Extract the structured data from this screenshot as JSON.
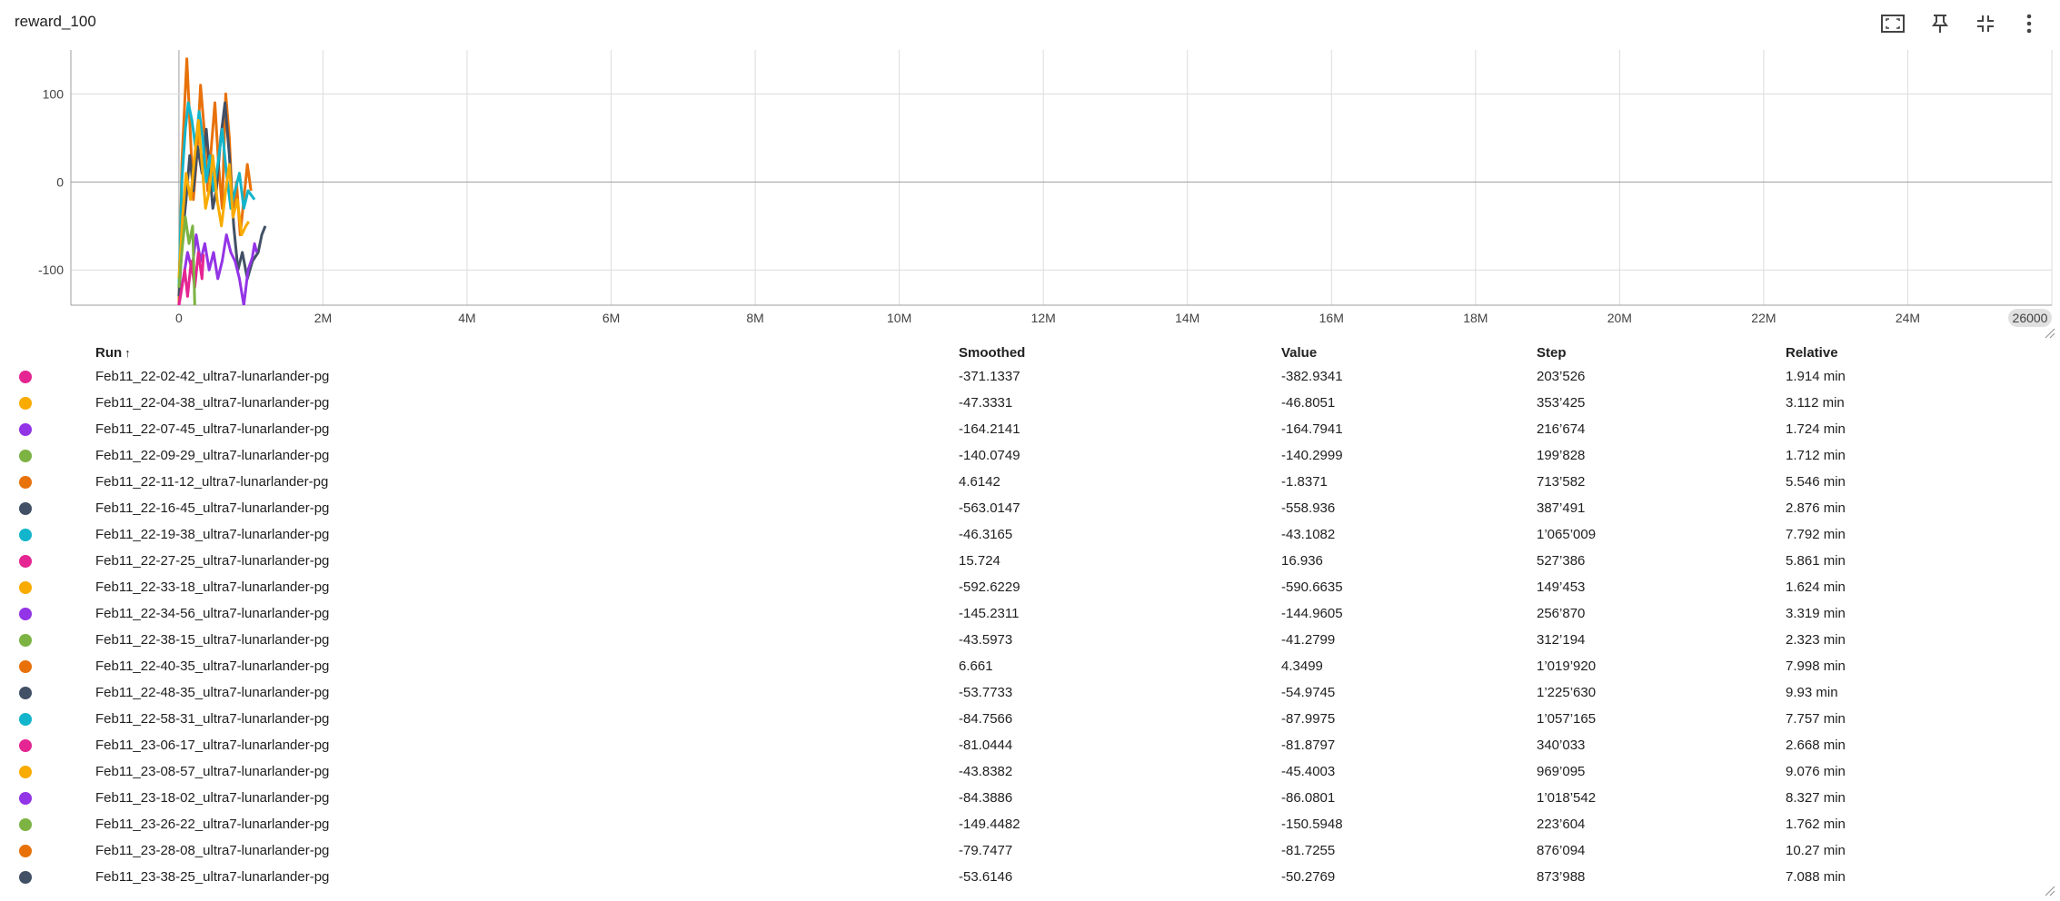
{
  "card": {
    "title": "reward_100",
    "toolbar": [
      {
        "icon": "fit-domain-icon"
      },
      {
        "icon": "pin-icon"
      },
      {
        "icon": "collapse-icon"
      },
      {
        "icon": "more-vert-icon"
      }
    ]
  },
  "chart_data": {
    "type": "line",
    "xlim": [
      -1500000,
      26000000
    ],
    "ylim": [
      -140,
      150
    ],
    "x_ticks": [
      {
        "value": 0,
        "label": "0"
      },
      {
        "value": 2000000,
        "label": "2M"
      },
      {
        "value": 4000000,
        "label": "4M"
      },
      {
        "value": 6000000,
        "label": "6M"
      },
      {
        "value": 8000000,
        "label": "8M"
      },
      {
        "value": 10000000,
        "label": "10M"
      },
      {
        "value": 12000000,
        "label": "12M"
      },
      {
        "value": 14000000,
        "label": "14M"
      },
      {
        "value": 16000000,
        "label": "16M"
      },
      {
        "value": 18000000,
        "label": "18M"
      },
      {
        "value": 20000000,
        "label": "20M"
      },
      {
        "value": 22000000,
        "label": "22M"
      },
      {
        "value": 24000000,
        "label": "24M"
      }
    ],
    "x_edge_label": "26000",
    "y_ticks": [
      {
        "value": 100,
        "label": "100"
      },
      {
        "value": 0,
        "label": "0"
      },
      {
        "value": -100,
        "label": "-100"
      }
    ],
    "grid": true,
    "series": [
      {
        "color": "#e8710a",
        "points": [
          [
            0,
            -140
          ],
          [
            40000,
            20
          ],
          [
            80000,
            90
          ],
          [
            110000,
            140
          ],
          [
            150000,
            70
          ],
          [
            200000,
            -20
          ],
          [
            250000,
            30
          ],
          [
            300000,
            110
          ],
          [
            350000,
            60
          ],
          [
            400000,
            -10
          ],
          [
            450000,
            40
          ],
          [
            500000,
            90
          ],
          [
            550000,
            20
          ],
          [
            600000,
            -30
          ],
          [
            650000,
            100
          ],
          [
            700000,
            50
          ],
          [
            750000,
            -40
          ],
          [
            800000,
            0
          ],
          [
            850000,
            -60
          ],
          [
            900000,
            -20
          ],
          [
            950000,
            20
          ],
          [
            1000000,
            -10
          ]
        ]
      },
      {
        "color": "#425066",
        "points": [
          [
            0,
            -130
          ],
          [
            50000,
            -60
          ],
          [
            100000,
            -20
          ],
          [
            150000,
            30
          ],
          [
            200000,
            -10
          ],
          [
            260000,
            40
          ],
          [
            320000,
            10
          ],
          [
            380000,
            60
          ],
          [
            420000,
            20
          ],
          [
            470000,
            -30
          ],
          [
            520000,
            -10
          ],
          [
            580000,
            50
          ],
          [
            640000,
            90
          ],
          [
            700000,
            30
          ],
          [
            760000,
            -50
          ],
          [
            820000,
            -100
          ],
          [
            880000,
            -80
          ],
          [
            950000,
            -110
          ],
          [
            1020000,
            -90
          ],
          [
            1100000,
            -80
          ],
          [
            1150000,
            -60
          ],
          [
            1200000,
            -50
          ]
        ]
      },
      {
        "color": "#12b5cb",
        "points": [
          [
            0,
            -120
          ],
          [
            40000,
            0
          ],
          [
            90000,
            60
          ],
          [
            130000,
            90
          ],
          [
            180000,
            70
          ],
          [
            230000,
            40
          ],
          [
            280000,
            80
          ],
          [
            330000,
            50
          ],
          [
            380000,
            0
          ],
          [
            430000,
            30
          ],
          [
            480000,
            -10
          ],
          [
            540000,
            20
          ],
          [
            600000,
            60
          ],
          [
            660000,
            10
          ],
          [
            720000,
            -30
          ],
          [
            780000,
            -10
          ],
          [
            840000,
            10
          ],
          [
            900000,
            -30
          ],
          [
            960000,
            -10
          ],
          [
            1050000,
            -20
          ]
        ]
      },
      {
        "color": "#f9ab00",
        "points": [
          [
            0,
            -110
          ],
          [
            50000,
            -40
          ],
          [
            100000,
            10
          ],
          [
            160000,
            -20
          ],
          [
            220000,
            30
          ],
          [
            270000,
            70
          ],
          [
            320000,
            20
          ],
          [
            370000,
            -30
          ],
          [
            420000,
            -10
          ],
          [
            470000,
            30
          ],
          [
            530000,
            -20
          ],
          [
            590000,
            -50
          ],
          [
            650000,
            -10
          ],
          [
            700000,
            20
          ],
          [
            750000,
            -40
          ],
          [
            810000,
            -20
          ],
          [
            870000,
            -60
          ],
          [
            930000,
            -50
          ],
          [
            969000,
            -45
          ]
        ]
      },
      {
        "color": "#9334e6",
        "points": [
          [
            0,
            -140
          ],
          [
            60000,
            -110
          ],
          [
            120000,
            -80
          ],
          [
            180000,
            -100
          ],
          [
            240000,
            -60
          ],
          [
            300000,
            -90
          ],
          [
            360000,
            -70
          ],
          [
            420000,
            -100
          ],
          [
            480000,
            -80
          ],
          [
            540000,
            -110
          ],
          [
            600000,
            -90
          ],
          [
            660000,
            -60
          ],
          [
            720000,
            -80
          ],
          [
            780000,
            -90
          ],
          [
            840000,
            -110
          ],
          [
            900000,
            -140
          ],
          [
            960000,
            -100
          ],
          [
            1018000,
            -86
          ],
          [
            1050000,
            -70
          ],
          [
            1080000,
            -80
          ]
        ]
      },
      {
        "color": "#e52592",
        "points": [
          [
            0,
            -140
          ],
          [
            40000,
            -120
          ],
          [
            80000,
            -100
          ],
          [
            120000,
            -130
          ],
          [
            170000,
            -90
          ],
          [
            220000,
            -120
          ],
          [
            270000,
            -80
          ],
          [
            320000,
            -110
          ],
          [
            340000,
            -82
          ]
        ]
      },
      {
        "color": "#7cb342",
        "points": [
          [
            0,
            -120
          ],
          [
            40000,
            -80
          ],
          [
            90000,
            -40
          ],
          [
            140000,
            -70
          ],
          [
            190000,
            -50
          ],
          [
            223000,
            -150
          ]
        ]
      }
    ]
  },
  "table": {
    "headers": {
      "run": "Run",
      "sort_indicator": "↑",
      "smoothed": "Smoothed",
      "value": "Value",
      "step": "Step",
      "relative": "Relative"
    },
    "rows": [
      {
        "color": "#e52592",
        "run": "Feb11_22-02-42_ultra7-lunarlander-pg",
        "smoothed": "-371.1337",
        "value": "-382.9341",
        "step": "203’526",
        "relative": "1.914 min"
      },
      {
        "color": "#f9ab00",
        "run": "Feb11_22-04-38_ultra7-lunarlander-pg",
        "smoothed": "-47.3331",
        "value": "-46.8051",
        "step": "353’425",
        "relative": "3.112 min"
      },
      {
        "color": "#9334e6",
        "run": "Feb11_22-07-45_ultra7-lunarlander-pg",
        "smoothed": "-164.2141",
        "value": "-164.7941",
        "step": "216’674",
        "relative": "1.724 min"
      },
      {
        "color": "#7cb342",
        "run": "Feb11_22-09-29_ultra7-lunarlander-pg",
        "smoothed": "-140.0749",
        "value": "-140.2999",
        "step": "199’828",
        "relative": "1.712 min"
      },
      {
        "color": "#e8710a",
        "run": "Feb11_22-11-12_ultra7-lunarlander-pg",
        "smoothed": "4.6142",
        "value": "-1.8371",
        "step": "713’582",
        "relative": "5.546 min"
      },
      {
        "color": "#425066",
        "run": "Feb11_22-16-45_ultra7-lunarlander-pg",
        "smoothed": "-563.0147",
        "value": "-558.936",
        "step": "387’491",
        "relative": "2.876 min"
      },
      {
        "color": "#12b5cb",
        "run": "Feb11_22-19-38_ultra7-lunarlander-pg",
        "smoothed": "-46.3165",
        "value": "-43.1082",
        "step": "1’065’009",
        "relative": "7.792 min"
      },
      {
        "color": "#e52592",
        "run": "Feb11_22-27-25_ultra7-lunarlander-pg",
        "smoothed": "15.724",
        "value": "16.936",
        "step": "527’386",
        "relative": "5.861 min"
      },
      {
        "color": "#f9ab00",
        "run": "Feb11_22-33-18_ultra7-lunarlander-pg",
        "smoothed": "-592.6229",
        "value": "-590.6635",
        "step": "149’453",
        "relative": "1.624 min"
      },
      {
        "color": "#9334e6",
        "run": "Feb11_22-34-56_ultra7-lunarlander-pg",
        "smoothed": "-145.2311",
        "value": "-144.9605",
        "step": "256’870",
        "relative": "3.319 min"
      },
      {
        "color": "#7cb342",
        "run": "Feb11_22-38-15_ultra7-lunarlander-pg",
        "smoothed": "-43.5973",
        "value": "-41.2799",
        "step": "312’194",
        "relative": "2.323 min"
      },
      {
        "color": "#e8710a",
        "run": "Feb11_22-40-35_ultra7-lunarlander-pg",
        "smoothed": "6.661",
        "value": "4.3499",
        "step": "1’019’920",
        "relative": "7.998 min"
      },
      {
        "color": "#425066",
        "run": "Feb11_22-48-35_ultra7-lunarlander-pg",
        "smoothed": "-53.7733",
        "value": "-54.9745",
        "step": "1’225’630",
        "relative": "9.93 min"
      },
      {
        "color": "#12b5cb",
        "run": "Feb11_22-58-31_ultra7-lunarlander-pg",
        "smoothed": "-84.7566",
        "value": "-87.9975",
        "step": "1’057’165",
        "relative": "7.757 min"
      },
      {
        "color": "#e52592",
        "run": "Feb11_23-06-17_ultra7-lunarlander-pg",
        "smoothed": "-81.0444",
        "value": "-81.8797",
        "step": "340’033",
        "relative": "2.668 min"
      },
      {
        "color": "#f9ab00",
        "run": "Feb11_23-08-57_ultra7-lunarlander-pg",
        "smoothed": "-43.8382",
        "value": "-45.4003",
        "step": "969’095",
        "relative": "9.076 min"
      },
      {
        "color": "#9334e6",
        "run": "Feb11_23-18-02_ultra7-lunarlander-pg",
        "smoothed": "-84.3886",
        "value": "-86.0801",
        "step": "1’018’542",
        "relative": "8.327 min"
      },
      {
        "color": "#7cb342",
        "run": "Feb11_23-26-22_ultra7-lunarlander-pg",
        "smoothed": "-149.4482",
        "value": "-150.5948",
        "step": "223’604",
        "relative": "1.762 min"
      },
      {
        "color": "#e8710a",
        "run": "Feb11_23-28-08_ultra7-lunarlander-pg",
        "smoothed": "-79.7477",
        "value": "-81.7255",
        "step": "876’094",
        "relative": "10.27 min"
      },
      {
        "color": "#425066",
        "run": "Feb11_23-38-25_ultra7-lunarlander-pg",
        "smoothed": "-53.6146",
        "value": "-50.2769",
        "step": "873’988",
        "relative": "7.088 min"
      }
    ]
  }
}
